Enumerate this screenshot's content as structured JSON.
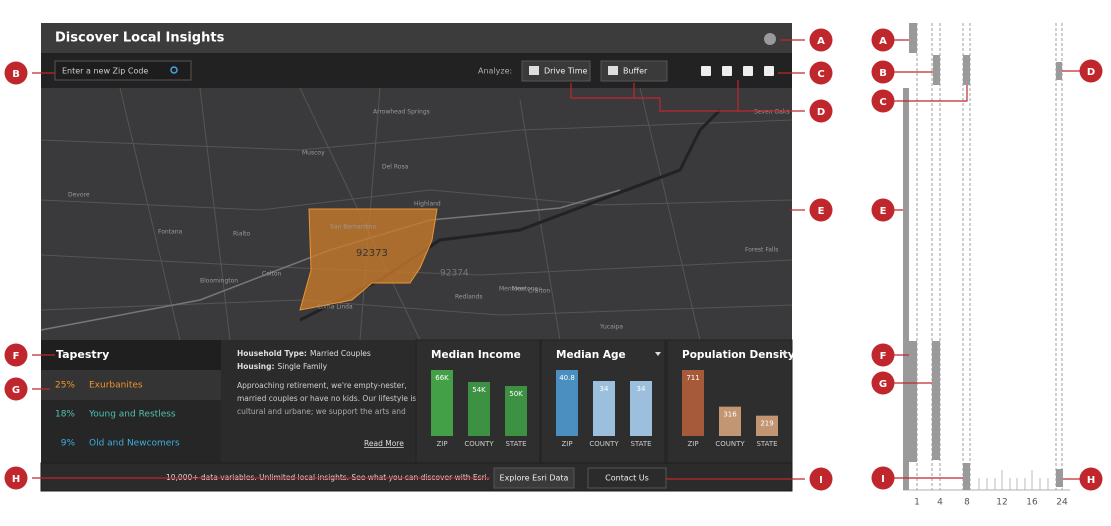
{
  "header": {
    "title": "Discover Local Insights"
  },
  "toolbar": {
    "search_placeholder": "Enter a new Zip Code",
    "analyze_label": "Analyze:",
    "buttons": [
      "Drive Time",
      "Buffer"
    ]
  },
  "map": {
    "zip_labels": [
      "92373",
      "92374"
    ],
    "places": [
      "Arrowhead Springs",
      "Muscoy",
      "Del Rosa",
      "Devore",
      "Fontana",
      "Rialto",
      "San Bernardino",
      "Highland",
      "Colton",
      "Bloomington",
      "Redlands",
      "Mentone",
      "Loma Linda",
      "Yucaipa",
      "Crafton",
      "Mentone",
      "Seven Oaks",
      "Forest Falls"
    ]
  },
  "tapestry": {
    "title": "Tapestry",
    "segments": [
      {
        "percent": "25%",
        "name": "Exurbanites",
        "color": "#f0932b"
      },
      {
        "percent": "18%",
        "name": "Young and Restless",
        "color": "#4fc1b0"
      },
      {
        "percent": "9%",
        "name": "Old and Newcomers",
        "color": "#3ab0e0"
      }
    ]
  },
  "description": {
    "household_label": "Household Type:",
    "household": "Married Couples",
    "housing_label": "Housing:",
    "housing": "Single Family",
    "lines": [
      "Approaching retirement, we're empty-nester,",
      "married couples or have no kids. Our lifestyle is",
      "cultural and urbane; we support the arts and"
    ],
    "read_more": "Read More"
  },
  "stats": [
    {
      "title": "Median Income",
      "categories": [
        "ZIP",
        "COUNTY",
        "STATE"
      ],
      "values": [
        66000,
        54000,
        50000
      ],
      "value_labels": [
        "66K",
        "54K",
        "50K"
      ],
      "colors": [
        "#43a047",
        "#3d9142",
        "#3d9142"
      ],
      "dropdown": false
    },
    {
      "title": "Median Age",
      "categories": [
        "ZIP",
        "COUNTY",
        "STATE"
      ],
      "values": [
        40.8,
        34,
        34
      ],
      "colors": [
        "#4a8fc0",
        "#9bbfdc",
        "#9bbfdc"
      ],
      "dropdown": true
    },
    {
      "title": "Population Density",
      "categories": [
        "ZIP",
        "COUNTY",
        "STATE"
      ],
      "values": [
        711,
        316,
        219
      ],
      "colors": [
        "#a65a3a",
        "#c29573",
        "#c29573"
      ],
      "dropdown": true
    }
  ],
  "footer": {
    "text": "10,000+ data variables. Unlimited local insights. See what you can discover with Esri.",
    "buttons": [
      "Explore Esri Data",
      "Contact Us"
    ]
  },
  "callouts": [
    "A",
    "B",
    "C",
    "D",
    "E",
    "F",
    "G",
    "H",
    "I"
  ],
  "grid_callouts": [
    "A",
    "B",
    "C",
    "D",
    "E",
    "F",
    "G",
    "H",
    "I"
  ],
  "grid_axis": [
    1,
    4,
    8,
    12,
    16,
    24
  ]
}
